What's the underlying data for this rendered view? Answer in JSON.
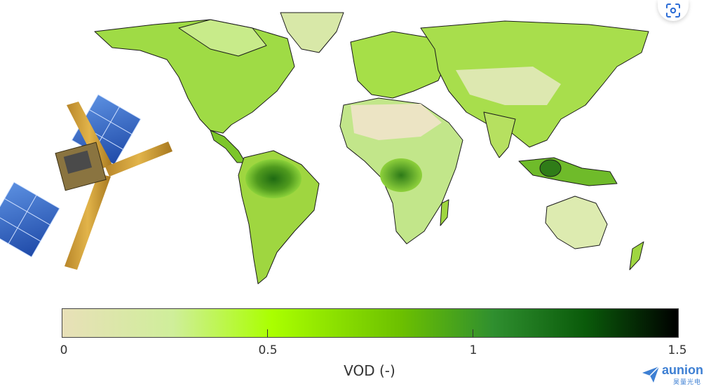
{
  "colorbar": {
    "ticks": [
      "0",
      "0.5",
      "1",
      "1.5"
    ],
    "tick_values": [
      0,
      0.5,
      1,
      1.5
    ],
    "range": [
      0,
      1.5
    ],
    "label": "VOD (-)",
    "colors": [
      "#e8e0b8",
      "#cfee9a",
      "#aaff00",
      "#6cc000",
      "#2f8f2f",
      "#0a5a0a",
      "#000000"
    ]
  },
  "brand": {
    "name": "aunion",
    "subtitle": "昊量光电",
    "color": "#3d7fd3"
  },
  "icons": {
    "scan": "scan-image-icon",
    "brand": "paper-plane-icon"
  }
}
